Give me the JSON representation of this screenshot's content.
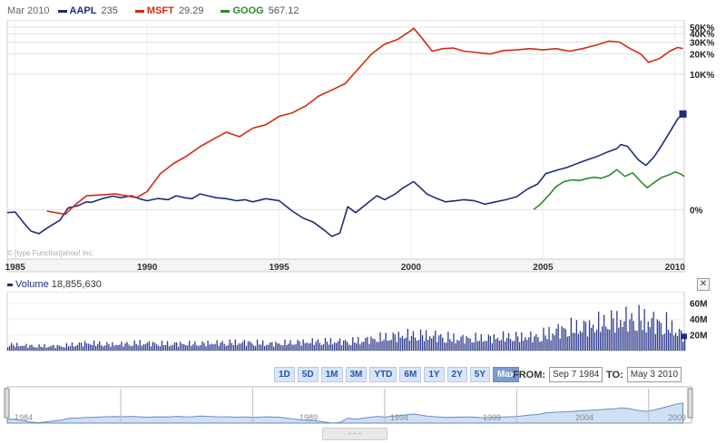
{
  "header": {
    "date": "Mar 2010",
    "legend": [
      {
        "symbol": "AAPL",
        "value": "235",
        "color": "#1e2c80"
      },
      {
        "symbol": "MSFT",
        "value": "29.29",
        "color": "#d42a10"
      },
      {
        "symbol": "GOOG",
        "value": "567.12",
        "color": "#2a8a2a"
      }
    ]
  },
  "watermark": "© [type Function]ahoo! Inc.",
  "volume": {
    "label": "Volume",
    "value": "18,855,630",
    "close_label": "✕"
  },
  "range_buttons": [
    "1D",
    "5D",
    "1M",
    "3M",
    "YTD",
    "6M",
    "1Y",
    "2Y",
    "5Y",
    "Max"
  ],
  "range_active": "Max",
  "date_range": {
    "from_label": "FROM:",
    "from_value": "Sep 7 1984",
    "to_label": "TO:",
    "to_value": "May 3 2010"
  },
  "navigator": {
    "grip": "- - -",
    "labels": [
      "1984",
      "1989",
      "1994",
      "1999",
      "2004",
      "2009"
    ]
  },
  "chart_data": [
    {
      "type": "line",
      "title": "",
      "xlim": [
        1984.7,
        2010.35
      ],
      "x_ticks": [
        1985,
        1990,
        1995,
        2000,
        2005,
        2010
      ],
      "y_scale": "log (percent change)",
      "y_ticks": [
        "0%",
        "10K%",
        "20K%",
        "30K%",
        "40K%",
        "50K%"
      ],
      "grid": true,
      "legend": "top-left",
      "series": [
        {
          "name": "AAPL",
          "color": "#1e2c80",
          "x": [
            1984.7,
            1985.0,
            1985.3,
            1985.6,
            1985.9,
            1986.3,
            1986.7,
            1987.0,
            1987.4,
            1987.7,
            1987.9,
            1988.3,
            1988.7,
            1989.0,
            1989.4,
            1989.7,
            1990.0,
            1990.4,
            1990.8,
            1991.1,
            1991.4,
            1991.7,
            1992.0,
            1992.3,
            1992.6,
            1993.0,
            1993.4,
            1993.7,
            1994.0,
            1994.5,
            1995.0,
            1995.5,
            1995.9,
            1996.3,
            1996.7,
            1997.0,
            1997.3,
            1997.6,
            1997.9,
            1998.3,
            1998.7,
            1999.0,
            1999.4,
            1999.7,
            1999.95,
            2000.1,
            2000.3,
            2000.6,
            2000.9,
            2001.3,
            2001.7,
            2002.0,
            2002.4,
            2002.8,
            2003.2,
            2003.6,
            2004.0,
            2004.4,
            2004.8,
            2005.1,
            2005.5,
            2005.9,
            2006.3,
            2006.7,
            2007.0,
            2007.4,
            2007.8,
            2007.95,
            2008.2,
            2008.6,
            2008.9,
            2009.2,
            2009.5,
            2009.8,
            2010.1,
            2010.3
          ],
          "y": [
            -10,
            -8,
            -35,
            -52,
            -56,
            -44,
            -30,
            5,
            15,
            30,
            28,
            45,
            58,
            50,
            60,
            45,
            35,
            46,
            40,
            60,
            50,
            45,
            70,
            60,
            50,
            45,
            35,
            40,
            30,
            45,
            35,
            -5,
            -25,
            -35,
            -50,
            -60,
            -55,
            10,
            -10,
            20,
            60,
            40,
            70,
            110,
            140,
            160,
            120,
            70,
            50,
            30,
            35,
            40,
            35,
            20,
            30,
            40,
            55,
            100,
            140,
            240,
            280,
            320,
            380,
            450,
            500,
            600,
            700,
            820,
            760,
            450,
            350,
            500,
            800,
            1300,
            2100,
            2500
          ]
        },
        {
          "name": "MSFT",
          "color": "#d42a10",
          "x": [
            1986.2,
            1986.9,
            1987.3,
            1987.7,
            1988.3,
            1988.8,
            1989.2,
            1989.6,
            1990.0,
            1990.5,
            1991.0,
            1991.5,
            1992.0,
            1992.5,
            1993.0,
            1993.5,
            1994.0,
            1994.5,
            1995.0,
            1995.5,
            1996.0,
            1996.5,
            1997.0,
            1997.5,
            1998.0,
            1998.5,
            1999.0,
            1999.5,
            1999.9,
            2000.1,
            2000.4,
            2000.8,
            2001.2,
            2001.6,
            2002.0,
            2002.5,
            2003.0,
            2003.5,
            2004.0,
            2004.5,
            2005.0,
            2005.5,
            2006.0,
            2006.5,
            2007.0,
            2007.5,
            2007.9,
            2008.3,
            2008.7,
            2009.0,
            2009.4,
            2009.8,
            2010.1,
            2010.3
          ],
          "y": [
            -5,
            -15,
            20,
            60,
            65,
            70,
            60,
            50,
            85,
            240,
            380,
            520,
            750,
            1000,
            1300,
            1100,
            1500,
            1700,
            2300,
            2600,
            3300,
            4700,
            5800,
            7200,
            12000,
            20000,
            28000,
            33000,
            42000,
            48000,
            35000,
            22000,
            24000,
            24500,
            22000,
            21000,
            20000,
            22500,
            23000,
            24000,
            23000,
            24000,
            22000,
            24000,
            27000,
            31000,
            30000,
            24000,
            20000,
            15000,
            17000,
            22000,
            25000,
            24000
          ]
        },
        {
          "name": "GOOG",
          "color": "#2a8a2a",
          "x": [
            2004.65,
            2004.9,
            2005.2,
            2005.5,
            2005.8,
            2006.1,
            2006.4,
            2006.7,
            2006.95,
            2007.2,
            2007.5,
            2007.8,
            2008.1,
            2008.4,
            2008.7,
            2008.95,
            2009.2,
            2009.5,
            2009.8,
            2010.0,
            2010.2,
            2010.35
          ],
          "y": [
            0,
            20,
            60,
            120,
            160,
            175,
            170,
            190,
            200,
            190,
            220,
            290,
            210,
            250,
            160,
            110,
            150,
            200,
            230,
            260,
            240,
            210
          ]
        }
      ]
    },
    {
      "type": "bar",
      "title": "Volume",
      "xlim": [
        1984.7,
        2010.35
      ],
      "y_ticks": [
        "20M",
        "40M",
        "60M"
      ],
      "ylim": [
        0,
        70
      ],
      "y_unit": "M shares",
      "x": [
        1984.7,
        1985.7,
        1986.7,
        1987.7,
        1988.7,
        1989.7,
        1990.7,
        1991.7,
        1992.7,
        1993.7,
        1994.7,
        1995.7,
        1996.7,
        1997.7,
        1998.7,
        1999.7,
        2000.7,
        2001.7,
        2002.7,
        2003.7,
        2004.7,
        2005.7,
        2006.7,
        2007.7,
        2008.7,
        2009.7,
        2010.35
      ],
      "values": [
        8,
        6,
        6,
        10,
        8,
        10,
        9,
        9,
        10,
        11,
        9,
        11,
        12,
        12,
        16,
        20,
        20,
        16,
        16,
        18,
        18,
        28,
        32,
        40,
        42,
        34,
        18
      ]
    }
  ]
}
